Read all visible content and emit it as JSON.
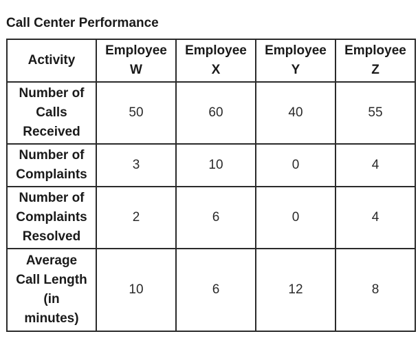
{
  "title": "Call Center Performance",
  "table": {
    "corner_header": "Activity",
    "columns": [
      {
        "line1": "Employee",
        "line2": "W"
      },
      {
        "line1": "Employee",
        "line2": "X"
      },
      {
        "line1": "Employee",
        "line2": "Y"
      },
      {
        "line1": "Employee",
        "line2": "Z"
      }
    ],
    "rows": [
      {
        "label": "Number of\nCalls\nReceived",
        "values": [
          "50",
          "60",
          "40",
          "55"
        ]
      },
      {
        "label": "Number of\nComplaints",
        "values": [
          "3",
          "10",
          "0",
          "4"
        ]
      },
      {
        "label": "Number of\nComplaints\nResolved",
        "values": [
          "2",
          "6",
          "0",
          "4"
        ]
      },
      {
        "label": "Average\nCall Length\n(in\nminutes)",
        "values": [
          "10",
          "6",
          "12",
          "8"
        ]
      }
    ]
  }
}
